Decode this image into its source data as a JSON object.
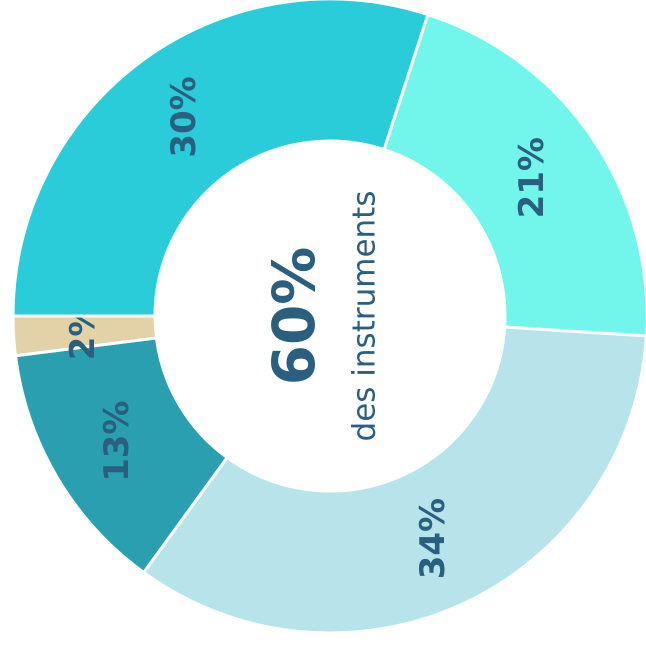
{
  "chart_data": {
    "type": "pie",
    "values": [
      21,
      34,
      13,
      2,
      30
    ],
    "value_labels": [
      "21%",
      "34%",
      "13%",
      "2%",
      "30%"
    ],
    "colors": [
      "#72f5ea",
      "#b6e4ea",
      "#2a9fb0",
      "#e3d1a8",
      "#29ccd8"
    ],
    "center_text": [
      "60%",
      "des instruments"
    ]
  }
}
